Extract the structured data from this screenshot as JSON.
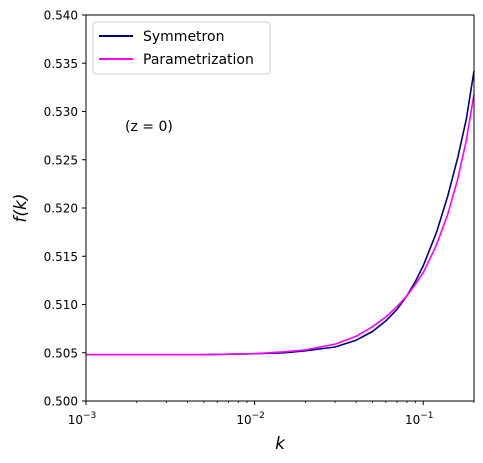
{
  "chart_data": {
    "type": "line",
    "xscale": "log",
    "xlim": [
      0.001,
      0.2
    ],
    "ylim": [
      0.5,
      0.54
    ],
    "xlabel": "k",
    "ylabel": "f(k)",
    "annotation": "(z = 0)",
    "grid": false,
    "legend_position": "top-left",
    "x_ticks": [
      {
        "value": 0.001,
        "base": "10",
        "exp": "−3"
      },
      {
        "value": 0.01,
        "base": "10",
        "exp": "−2"
      },
      {
        "value": 0.1,
        "base": "10",
        "exp": "−1"
      }
    ],
    "y_ticks": [
      "0.500",
      "0.505",
      "0.510",
      "0.515",
      "0.520",
      "0.525",
      "0.530",
      "0.535",
      "0.540"
    ],
    "series": [
      {
        "name": "Symmetron",
        "color": "#00007f",
        "x": [
          0.001,
          0.002,
          0.005,
          0.01,
          0.015,
          0.02,
          0.03,
          0.04,
          0.05,
          0.06,
          0.07,
          0.08,
          0.09,
          0.1,
          0.12,
          0.14,
          0.16,
          0.18,
          0.2
        ],
        "y": [
          0.5048,
          0.5048,
          0.5048,
          0.5049,
          0.505,
          0.5052,
          0.5056,
          0.5063,
          0.5072,
          0.5083,
          0.5095,
          0.5109,
          0.5124,
          0.514,
          0.5175,
          0.5213,
          0.5252,
          0.5292,
          0.5342
        ]
      },
      {
        "name": "Parametrization",
        "color": "#ff00ff",
        "x": [
          0.001,
          0.002,
          0.005,
          0.01,
          0.015,
          0.02,
          0.03,
          0.04,
          0.05,
          0.06,
          0.07,
          0.08,
          0.09,
          0.1,
          0.12,
          0.14,
          0.16,
          0.18,
          0.2
        ],
        "y": [
          0.5048,
          0.5048,
          0.5048,
          0.5049,
          0.5051,
          0.5053,
          0.5059,
          0.5067,
          0.5077,
          0.5087,
          0.5098,
          0.5109,
          0.5121,
          0.5133,
          0.5162,
          0.5194,
          0.523,
          0.527,
          0.5318
        ]
      }
    ]
  }
}
